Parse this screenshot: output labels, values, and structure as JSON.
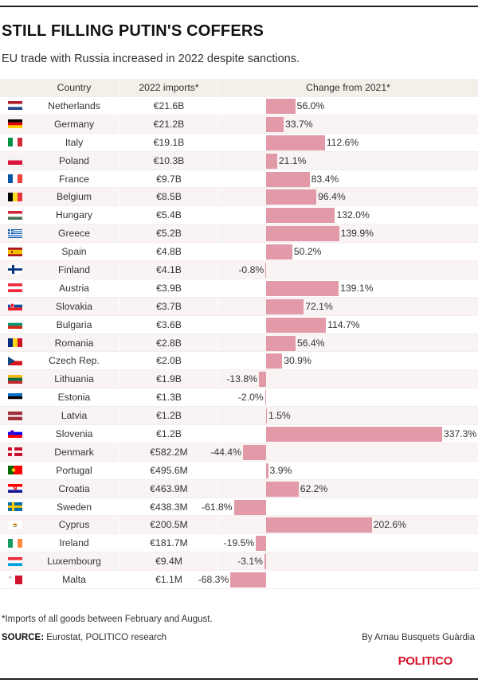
{
  "title": "STILL FILLING PUTIN'S COFFERS",
  "subtitle": "EU trade with Russia increased in 2022 despite sanctions.",
  "footnote": "*Imports of all goods between February and August.",
  "source_label": "SOURCE:",
  "source_text": " Eurostat, POLITICO research",
  "byline": "By Arnau Busquets Guàrdia",
  "logo": "POLITICO",
  "colors": {
    "bar": "#e39aa8",
    "logo": "#d6132a"
  },
  "chart_data": {
    "type": "table",
    "columns": [
      "Country",
      "2022 imports*",
      "Change from 2021*"
    ],
    "rows": [
      {
        "country": "Netherlands",
        "flag": "netherlands-flag-icon",
        "imports": "€21.6B",
        "change": 56.0,
        "change_label": "56.0%"
      },
      {
        "country": "Germany",
        "flag": "germany-flag-icon",
        "imports": "€21.2B",
        "change": 33.7,
        "change_label": "33.7%"
      },
      {
        "country": "Italy",
        "flag": "italy-flag-icon",
        "imports": "€19.1B",
        "change": 112.6,
        "change_label": "112.6%"
      },
      {
        "country": "Poland",
        "flag": "poland-flag-icon",
        "imports": "€10.3B",
        "change": 21.1,
        "change_label": "21.1%"
      },
      {
        "country": "France",
        "flag": "france-flag-icon",
        "imports": "€9.7B",
        "change": 83.4,
        "change_label": "83.4%"
      },
      {
        "country": "Belgium",
        "flag": "belgium-flag-icon",
        "imports": "€8.5B",
        "change": 96.4,
        "change_label": "96.4%"
      },
      {
        "country": "Hungary",
        "flag": "hungary-flag-icon",
        "imports": "€5.4B",
        "change": 132.0,
        "change_label": "132.0%"
      },
      {
        "country": "Greece",
        "flag": "greece-flag-icon",
        "imports": "€5.2B",
        "change": 139.9,
        "change_label": "139.9%"
      },
      {
        "country": "Spain",
        "flag": "spain-flag-icon",
        "imports": "€4.8B",
        "change": 50.2,
        "change_label": "50.2%"
      },
      {
        "country": "Finland",
        "flag": "finland-flag-icon",
        "imports": "€4.1B",
        "change": -0.8,
        "change_label": "-0.8%"
      },
      {
        "country": "Austria",
        "flag": "austria-flag-icon",
        "imports": "€3.9B",
        "change": 139.1,
        "change_label": "139.1%"
      },
      {
        "country": "Slovakia",
        "flag": "slovakia-flag-icon",
        "imports": "€3.7B",
        "change": 72.1,
        "change_label": "72.1%"
      },
      {
        "country": "Bulgaria",
        "flag": "bulgaria-flag-icon",
        "imports": "€3.6B",
        "change": 114.7,
        "change_label": "114.7%"
      },
      {
        "country": "Romania",
        "flag": "romania-flag-icon",
        "imports": "€2.8B",
        "change": 56.4,
        "change_label": "56.4%"
      },
      {
        "country": "Czech Rep.",
        "flag": "czech-flag-icon",
        "imports": "€2.0B",
        "change": 30.9,
        "change_label": "30.9%"
      },
      {
        "country": "Lithuania",
        "flag": "lithuania-flag-icon",
        "imports": "€1.9B",
        "change": -13.8,
        "change_label": "-13.8%"
      },
      {
        "country": "Estonia",
        "flag": "estonia-flag-icon",
        "imports": "€1.3B",
        "change": -2.0,
        "change_label": "-2.0%"
      },
      {
        "country": "Latvia",
        "flag": "latvia-flag-icon",
        "imports": "€1.2B",
        "change": 1.5,
        "change_label": "1.5%"
      },
      {
        "country": "Slovenia",
        "flag": "slovenia-flag-icon",
        "imports": "€1.2B",
        "change": 337.3,
        "change_label": "337.3%"
      },
      {
        "country": "Denmark",
        "flag": "denmark-flag-icon",
        "imports": "€582.2M",
        "change": -44.4,
        "change_label": "-44.4%"
      },
      {
        "country": "Portugal",
        "flag": "portugal-flag-icon",
        "imports": "€495.6M",
        "change": 3.9,
        "change_label": "3.9%"
      },
      {
        "country": "Croatia",
        "flag": "croatia-flag-icon",
        "imports": "€463.9M",
        "change": 62.2,
        "change_label": "62.2%"
      },
      {
        "country": "Sweden",
        "flag": "sweden-flag-icon",
        "imports": "€438.3M",
        "change": -61.8,
        "change_label": "-61.8%"
      },
      {
        "country": "Cyprus",
        "flag": "cyprus-flag-icon",
        "imports": "€200.5M",
        "change": 202.6,
        "change_label": "202.6%"
      },
      {
        "country": "Ireland",
        "flag": "ireland-flag-icon",
        "imports": "€181.7M",
        "change": -19.5,
        "change_label": "-19.5%"
      },
      {
        "country": "Luxembourg",
        "flag": "luxembourg-flag-icon",
        "imports": "€9.4M",
        "change": -3.1,
        "change_label": "-3.1%"
      },
      {
        "country": "Malta",
        "flag": "malta-flag-icon",
        "imports": "€1.1M",
        "change": -68.3,
        "change_label": "-68.3%"
      }
    ]
  }
}
